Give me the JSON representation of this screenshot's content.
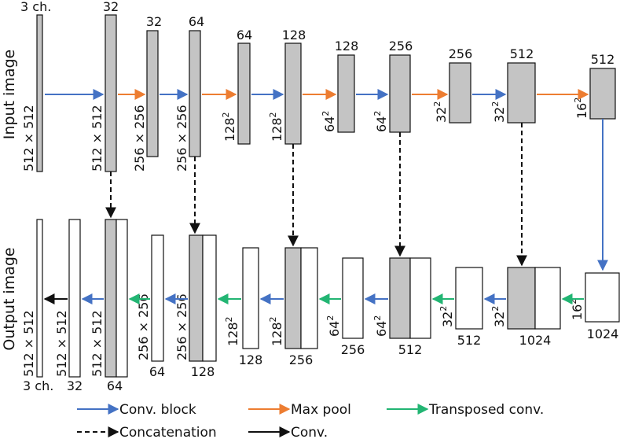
{
  "side_labels": {
    "input": "Input image",
    "output": "Output image"
  },
  "top_row": {
    "channels": [
      "3 ch.",
      "32",
      "32",
      "64",
      "64",
      "128",
      "128",
      "256",
      "256",
      "512",
      "512"
    ],
    "sizes": [
      "512 × 512",
      "512 × 512",
      "256 × 256",
      "256 × 256",
      "128",
      "128",
      "64",
      "64",
      "32",
      "32",
      "16"
    ],
    "size_exponent": "2"
  },
  "bottom_row": {
    "sizes": [
      "512 × 512",
      "512 × 512",
      "512 × 512",
      "256 × 256",
      "256 × 256",
      "128",
      "128",
      "64",
      "64",
      "32",
      "32",
      "16"
    ],
    "size_exponent": "2",
    "channels": [
      "3 ch.",
      "32",
      "64",
      "64",
      "128",
      "128",
      "256",
      "256",
      "512",
      "512",
      "1024",
      "1024"
    ]
  },
  "legend": {
    "conv_block": "Conv. block",
    "max_pool": "Max pool",
    "transposed_conv": "Transposed conv.",
    "concatenation": "Concatenation",
    "conv": "Conv."
  },
  "colors": {
    "conv_block": "#4472c4",
    "max_pool": "#ed7d31",
    "transposed_conv": "#22b573",
    "concatenation": "#111111",
    "conv": "#111111",
    "feature_fill": "#c4c4c4"
  }
}
